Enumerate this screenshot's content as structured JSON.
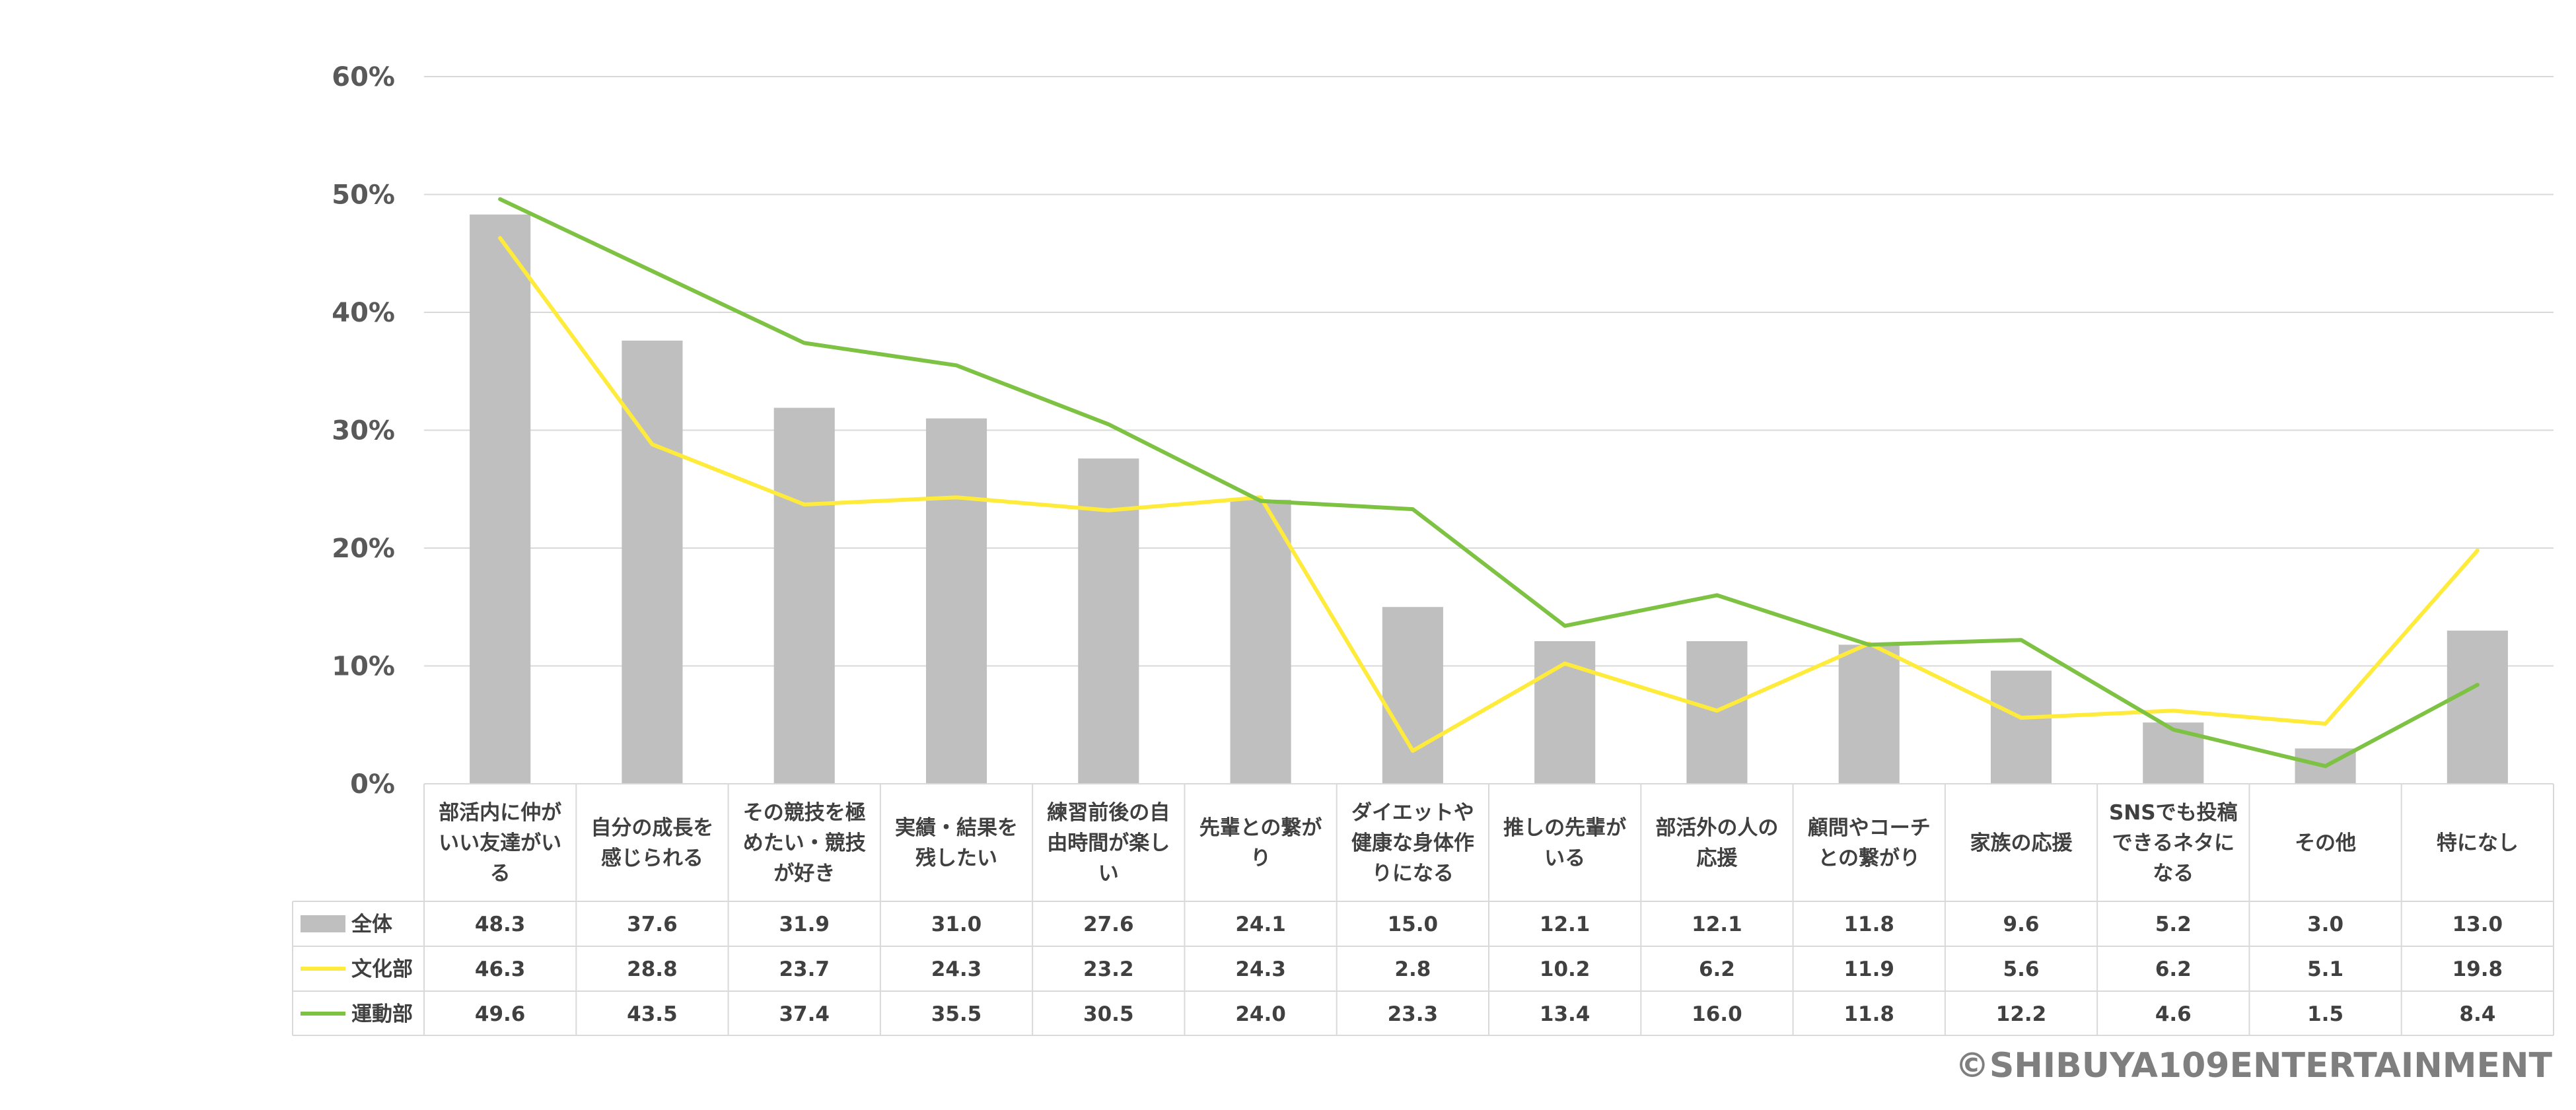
{
  "chart_data": {
    "type": "bar",
    "title": "",
    "xlabel": "",
    "ylabel": "",
    "ylim": [
      0,
      60
    ],
    "y_ticks": [
      "0%",
      "10%",
      "20%",
      "30%",
      "40%",
      "50%",
      "60%"
    ],
    "y_tick_values": [
      0,
      10,
      20,
      30,
      40,
      50,
      60
    ],
    "grid": true,
    "legend": "in data table (left)",
    "categories": [
      [
        "部活内に仲が",
        "いい友達がい",
        "る"
      ],
      [
        "自分の成長を",
        "感じられる"
      ],
      [
        "その競技を極",
        "めたい・競技",
        "が好き"
      ],
      [
        "実績・結果を",
        "残したい"
      ],
      [
        "練習前後の自",
        "由時間が楽し",
        "い"
      ],
      [
        "先輩との繋が",
        "り"
      ],
      [
        "ダイエットや",
        "健康な身体作",
        "りになる"
      ],
      [
        "推しの先輩が",
        "いる"
      ],
      [
        "部活外の人の",
        "応援"
      ],
      [
        "顧問やコーチ",
        "との繋がり"
      ],
      [
        "家族の応援"
      ],
      [
        "SNSでも投稿",
        "できるネタに",
        "なる"
      ],
      [
        "その他"
      ],
      [
        "特になし"
      ]
    ],
    "series": [
      {
        "name": "全体",
        "kind": "bar",
        "color": "#bfbfbf",
        "values": [
          48.3,
          37.6,
          31.9,
          31.0,
          27.6,
          24.1,
          15.0,
          12.1,
          12.1,
          11.8,
          9.6,
          5.2,
          3.0,
          13.0
        ],
        "labels": [
          "48.3",
          "37.6",
          "31.9",
          "31.0",
          "27.6",
          "24.1",
          "15.0",
          "12.1",
          "12.1",
          "11.8",
          "9.6",
          "5.2",
          "3.0",
          "13.0"
        ]
      },
      {
        "name": "文化部",
        "kind": "line",
        "color": "#ffeb3b",
        "values": [
          46.3,
          28.8,
          23.7,
          24.3,
          23.2,
          24.3,
          2.8,
          10.2,
          6.2,
          11.9,
          5.6,
          6.2,
          5.1,
          19.8
        ],
        "labels": [
          "46.3",
          "28.8",
          "23.7",
          "24.3",
          "23.2",
          "24.3",
          "2.8",
          "10.2",
          "6.2",
          "11.9",
          "5.6",
          "6.2",
          "5.1",
          "19.8"
        ]
      },
      {
        "name": "運動部",
        "kind": "line",
        "color": "#7dc242",
        "values": [
          49.6,
          43.5,
          37.4,
          35.5,
          30.5,
          24.0,
          23.3,
          13.4,
          16.0,
          11.8,
          12.2,
          4.6,
          1.5,
          8.4
        ],
        "labels": [
          "49.6",
          "43.5",
          "37.4",
          "35.5",
          "30.5",
          "24.0",
          "23.3",
          "13.4",
          "16.0",
          "11.8",
          "12.2",
          "4.6",
          "1.5",
          "8.4"
        ]
      }
    ]
  },
  "colors": {
    "grid": "#d9d9d9",
    "table_border": "#d9d9d9"
  },
  "copyright": "©SHIBUYA109ENTERTAINMENT"
}
